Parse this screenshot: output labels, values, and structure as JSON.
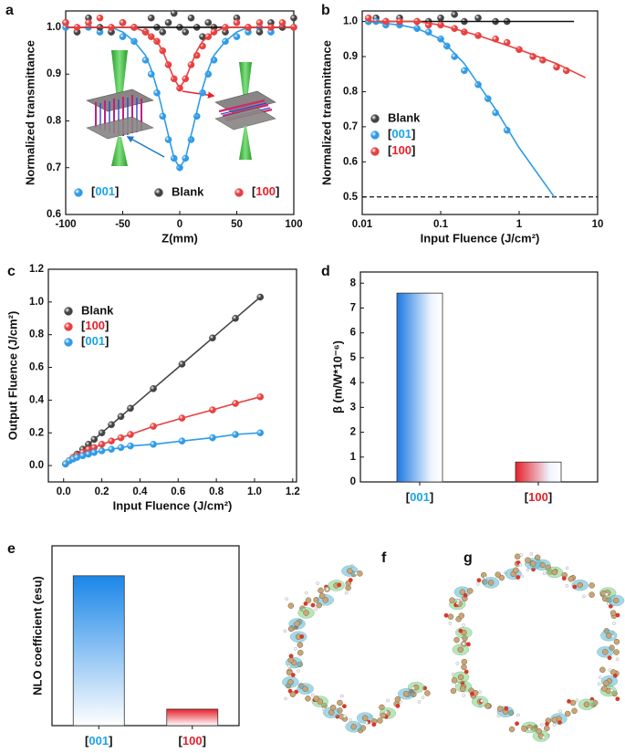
{
  "chart_data": [
    {
      "type": "scatter",
      "label": "a",
      "xlabel": "Z(mm)",
      "ylabel": "Normalized transmittance",
      "xlim": [
        -100,
        100
      ],
      "xticks": [
        -100,
        -50,
        0,
        50,
        100
      ],
      "ylim": [
        0.6,
        1.035
      ],
      "yticks": [
        0.6,
        0.7,
        0.8,
        0.9,
        {
          "value": 1,
          "label": "1.0"
        }
      ],
      "legend": "lower center",
      "x": [
        -100,
        -90,
        -80,
        -70,
        -60,
        -50,
        -40,
        -30,
        -25,
        -20,
        -15,
        -10,
        -5,
        0,
        5,
        10,
        15,
        20,
        25,
        30,
        40,
        50,
        60,
        70,
        80,
        90,
        100
      ],
      "series": [
        {
          "name": "[001]",
          "color": "#2f9be8",
          "label_color": "#1aa3e8",
          "values": [
            1.0,
            0.99,
            1.0,
            0.99,
            0.99,
            0.98,
            0.97,
            0.93,
            0.9,
            0.86,
            0.81,
            0.76,
            0.72,
            0.7,
            0.72,
            0.76,
            0.81,
            0.86,
            0.9,
            0.93,
            0.97,
            0.98,
            0.99,
            1.0,
            0.99,
            1.0,
            1.0
          ],
          "fit": [
            1,
            1,
            1,
            1,
            1,
            0.99,
            0.97,
            0.94,
            0.91,
            0.87,
            0.82,
            0.77,
            0.72,
            0.7,
            0.72,
            0.77,
            0.82,
            0.87,
            0.91,
            0.94,
            0.97,
            0.99,
            1,
            1,
            1,
            1,
            1
          ]
        },
        {
          "name": "Blank",
          "color": "#444444",
          "label_color": "#111111",
          "values": [
            1.01,
            0.99,
            1.02,
            1.0,
            0.99,
            1.01,
            1.0,
            0.99,
            1.02,
            1.0,
            0.99,
            1.01,
            1.03,
            1.0,
            0.99,
            1.02,
            1.0,
            0.98,
            1.01,
            1.0,
            0.99,
            1.02,
            1.0,
            0.99,
            1.01,
            1.0,
            1.02
          ],
          "fit_x": [
            -100,
            100
          ],
          "fit": [
            1,
            1
          ]
        },
        {
          "name": "[100]",
          "color": "#e8403f",
          "label_color": "#e8202a",
          "values": [
            1.01,
            1.0,
            1.01,
            1.02,
            1.0,
            1.01,
            1.0,
            0.99,
            0.98,
            0.97,
            0.95,
            0.92,
            0.89,
            0.87,
            0.89,
            0.92,
            0.94,
            0.96,
            0.98,
            0.99,
            1.0,
            1.01,
            1.0,
            1.01,
            1.0,
            1.01,
            1.0
          ],
          "fit": [
            1,
            1,
            1,
            1,
            1,
            1,
            1,
            0.99,
            0.98,
            0.97,
            0.95,
            0.92,
            0.89,
            0.87,
            0.89,
            0.92,
            0.95,
            0.97,
            0.98,
            0.99,
            1,
            1,
            1,
            1,
            1,
            1,
            1
          ]
        }
      ]
    },
    {
      "type": "scatter",
      "label": "b",
      "xlabel": "Input Fluence (J/cm²)",
      "ylabel": "Normalized transmittance",
      "xscale": "log",
      "xlim": [
        0.01,
        10
      ],
      "xticks": [
        0.01,
        0.1,
        1,
        10
      ],
      "ylim": [
        0.45,
        1.03
      ],
      "yticks": [
        0.5,
        0.6,
        0.7,
        0.8,
        0.9,
        {
          "value": 1,
          "label": "1.0"
        }
      ],
      "hline": 0.5,
      "legend": "center left",
      "series": [
        {
          "name": "Blank",
          "color": "#444444",
          "label_color": "#111111",
          "x": [
            0.012,
            0.015,
            0.02,
            0.03,
            0.05,
            0.07,
            0.1,
            0.15,
            0.2,
            0.3,
            0.5,
            0.7
          ],
          "values": [
            1.0,
            1.01,
            1.0,
            1.01,
            1.0,
            1.0,
            1.01,
            1.02,
            1.0,
            1.01,
            1.0,
            1.0
          ],
          "fit_x": [
            0.012,
            5
          ],
          "fit": [
            1,
            1
          ]
        },
        {
          "name": "[001]",
          "color": "#2f9be8",
          "label_color": "#1aa3e8",
          "x": [
            0.012,
            0.015,
            0.02,
            0.03,
            0.05,
            0.07,
            0.1,
            0.12,
            0.15,
            0.2,
            0.3,
            0.4,
            0.5,
            0.7
          ],
          "values": [
            1.0,
            1.0,
            0.99,
            0.99,
            0.98,
            0.97,
            0.95,
            0.93,
            0.9,
            0.86,
            0.82,
            0.78,
            0.74,
            0.69
          ],
          "fit_x": [
            0.012,
            0.03,
            0.05,
            0.1,
            0.2,
            0.5,
            1,
            2.8
          ],
          "fit": [
            1.0,
            0.99,
            0.98,
            0.95,
            0.88,
            0.75,
            0.64,
            0.5
          ]
        },
        {
          "name": "[100]",
          "color": "#e8403f",
          "label_color": "#e8202a",
          "x": [
            0.012,
            0.02,
            0.03,
            0.05,
            0.07,
            0.1,
            0.15,
            0.2,
            0.3,
            0.5,
            0.7,
            1,
            1.5,
            2,
            3,
            4
          ],
          "values": [
            1.01,
            1.0,
            1.0,
            1.0,
            0.99,
            0.99,
            0.98,
            0.97,
            0.96,
            0.95,
            0.94,
            0.92,
            0.9,
            0.89,
            0.87,
            0.86
          ],
          "fit_x": [
            0.012,
            0.05,
            0.1,
            0.3,
            1,
            3,
            7
          ],
          "fit": [
            1.0,
            1.0,
            0.99,
            0.96,
            0.92,
            0.88,
            0.84
          ]
        }
      ]
    },
    {
      "type": "line",
      "label": "c",
      "xlabel": "Input Fluence (J/cm²)",
      "ylabel": "Output Fluence (J/cm²)",
      "xlim": [
        -0.08,
        1.22
      ],
      "xticks": [
        {
          "value": 0,
          "label": "0.0"
        },
        0.2,
        0.4,
        0.6,
        0.8,
        {
          "value": 1,
          "label": "1.0"
        },
        1.2
      ],
      "ylim": [
        -0.1,
        1.2
      ],
      "yticks": [
        {
          "value": 0,
          "label": "0.0"
        },
        0.2,
        0.4,
        0.6,
        0.8,
        {
          "value": 1,
          "label": "1.0"
        },
        1.2
      ],
      "legend": "upper left",
      "x": [
        0.01,
        0.03,
        0.05,
        0.07,
        0.1,
        0.13,
        0.16,
        0.2,
        0.25,
        0.3,
        0.35,
        0.47,
        0.62,
        0.78,
        0.9,
        1.03
      ],
      "series": [
        {
          "name": "Blank",
          "color": "#444444",
          "label_color": "#111111",
          "values": [
            0.01,
            0.03,
            0.05,
            0.07,
            0.1,
            0.13,
            0.16,
            0.2,
            0.25,
            0.3,
            0.35,
            0.47,
            0.62,
            0.78,
            0.9,
            1.03
          ]
        },
        {
          "name": "[100]",
          "color": "#e8403f",
          "label_color": "#e8202a",
          "values": [
            0.01,
            0.03,
            0.05,
            0.06,
            0.08,
            0.1,
            0.11,
            0.13,
            0.15,
            0.17,
            0.19,
            0.24,
            0.29,
            0.34,
            0.38,
            0.42
          ]
        },
        {
          "name": "[001]",
          "color": "#2f9be8",
          "label_color": "#1aa3e8",
          "values": [
            0.01,
            0.03,
            0.04,
            0.05,
            0.06,
            0.07,
            0.08,
            0.09,
            0.1,
            0.11,
            0.12,
            0.13,
            0.15,
            0.17,
            0.19,
            0.2
          ]
        }
      ]
    },
    {
      "type": "bar",
      "label": "d",
      "ylabel": "β (m/W*10⁻⁶)",
      "gradient": "horizontal",
      "ylim": [
        0,
        8.45
      ],
      "yticks": [
        0,
        1,
        2,
        3,
        4,
        5,
        6,
        7,
        8
      ],
      "categories": [
        "[001]",
        "[100]"
      ],
      "values": [
        7.6,
        0.8
      ],
      "colors": [
        "#1b78e0",
        "#e8202a"
      ],
      "label_colors": [
        "#1aa3e8",
        "#e8202a"
      ]
    },
    {
      "type": "bar",
      "label": "e",
      "ylabel": "NLO coefficient (esu)",
      "gradient": "vertical",
      "ylim": [
        0,
        1.2
      ],
      "categories": [
        "[001]",
        "[100]"
      ],
      "values": [
        1.0,
        0.11
      ],
      "colors": [
        "#1b86e8",
        "#e8202a"
      ],
      "label_colors": [
        "#1aa3e8",
        "#e8202a"
      ]
    }
  ],
  "image_panels": [
    {
      "label": "f"
    },
    {
      "label": "g"
    }
  ]
}
